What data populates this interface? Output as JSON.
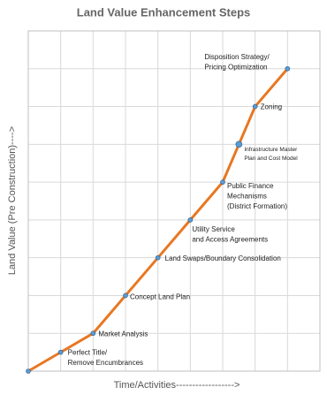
{
  "chart_data": {
    "type": "line",
    "title": "Land Value Enhancement Steps",
    "xlabel": "Time/Activities------------------>",
    "ylabel": "Land Value (Pre Construction)---->",
    "x": [
      0,
      1,
      2,
      3,
      4,
      5,
      6,
      6.5,
      7,
      8
    ],
    "series": [
      {
        "color": "#e87722",
        "marker_color": "#5b9bd5",
        "values": [
          0,
          0.5,
          1,
          2,
          3,
          4,
          5,
          6,
          7,
          8
        ],
        "labels": [
          null,
          [
            "Perfect Title/",
            "Remove Encumbrances"
          ],
          [
            "Market Analysis"
          ],
          [
            "Concept Land Plan"
          ],
          [
            "Land Swaps/Boundary Consolidation"
          ],
          [
            "Utility Service",
            "and Access Agreements"
          ],
          [
            "Public Finance",
            "Mechanisms",
            "(District Formation)"
          ],
          [
            "Infrastructure Master",
            "Plan and Cost Model"
          ],
          [
            "Zoning"
          ],
          [
            "Disposition Strategy/",
            "Pricing Optimization"
          ]
        ]
      }
    ],
    "xlim": [
      0,
      9
    ],
    "ylim": [
      0,
      9
    ],
    "xticks": [
      0,
      1,
      2,
      3,
      4,
      5,
      6,
      7,
      8,
      9
    ],
    "yticks": [
      0,
      1,
      2,
      3,
      4,
      5,
      6,
      7,
      8,
      9
    ],
    "tick_labels": false,
    "grid": true
  }
}
